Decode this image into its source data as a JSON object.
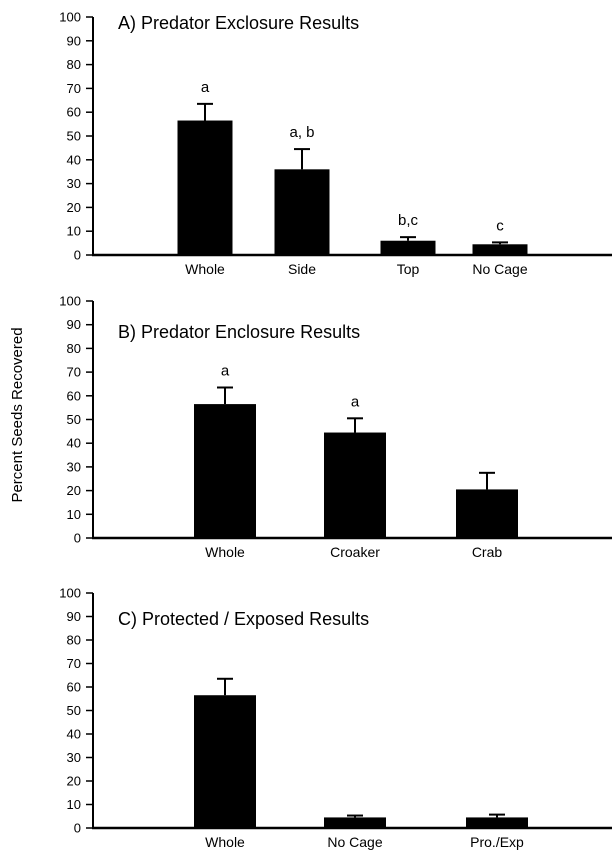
{
  "ylabel": "Percent Seeds Recovered",
  "chart_data": [
    {
      "type": "bar",
      "title": "A) Predator Exclosure Results",
      "categories": [
        "Whole",
        "Side",
        "Top",
        "No Cage"
      ],
      "values": [
        56.5,
        36,
        6,
        4.5
      ],
      "errors": [
        7,
        8.5,
        1.5,
        0.8
      ],
      "significance": [
        "a",
        "a, b",
        "b,c",
        "c"
      ],
      "ylim": [
        0,
        100
      ],
      "yticks": [
        "0",
        "10",
        "20",
        "30",
        "40",
        "50",
        "60",
        "70",
        "80",
        "90",
        "100"
      ],
      "grid": false
    },
    {
      "type": "bar",
      "title": "B) Predator Enclosure Results",
      "categories": [
        "Whole",
        "Croaker",
        "Crab"
      ],
      "values": [
        56.5,
        44.5,
        20.5
      ],
      "errors": [
        7,
        6,
        7
      ],
      "significance": [
        "a",
        "a",
        ""
      ],
      "ylim": [
        0,
        100
      ],
      "yticks": [
        "0",
        "10",
        "20",
        "30",
        "40",
        "50",
        "60",
        "70",
        "80",
        "90",
        "100"
      ],
      "grid": false
    },
    {
      "type": "bar",
      "title": "C) Protected / Exposed Results",
      "categories": [
        "Whole",
        "No Cage",
        "Pro./Exp"
      ],
      "values": [
        56.5,
        4.5,
        4.5
      ],
      "errors": [
        7,
        0.8,
        1.2
      ],
      "significance": [
        "",
        "",
        ""
      ],
      "ylim": [
        0,
        100
      ],
      "yticks": [
        "0",
        "10",
        "20",
        "30",
        "40",
        "50",
        "60",
        "70",
        "80",
        "90",
        "100"
      ],
      "grid": false
    }
  ]
}
